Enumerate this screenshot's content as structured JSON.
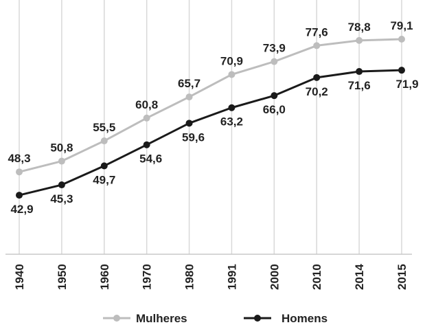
{
  "chart_data": {
    "type": "line",
    "title": "",
    "xlabel": "",
    "ylabel": "",
    "categories": [
      "1940",
      "1950",
      "1960",
      "1970",
      "1980",
      "1991",
      "2000",
      "2010",
      "2014",
      "2015"
    ],
    "series": [
      {
        "name": "Mulheres",
        "color": "#bdbdbd",
        "values": [
          48.3,
          50.8,
          55.5,
          60.8,
          65.7,
          70.9,
          73.9,
          77.6,
          78.8,
          79.1
        ],
        "labels": [
          "48,3",
          "50,8",
          "55,5",
          "60,8",
          "65,7",
          "70,9",
          "73,9",
          "77,6",
          "78,8",
          "79,1"
        ]
      },
      {
        "name": "Homens",
        "color": "#1a1a1a",
        "values": [
          42.9,
          45.3,
          49.7,
          54.6,
          59.6,
          63.2,
          66.0,
          70.2,
          71.6,
          71.9
        ],
        "labels": [
          "42,9",
          "45,3",
          "49,7",
          "54,6",
          "59,6",
          "63,2",
          "66,0",
          "70,2",
          "71,6",
          "71,9"
        ]
      }
    ],
    "ylim": [
      30,
      85
    ],
    "grid": "vertical",
    "legend": "bottom"
  }
}
